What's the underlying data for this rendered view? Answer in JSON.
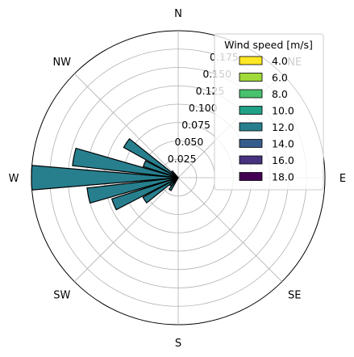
{
  "chart_data": {
    "type": "windrose",
    "direction_labels": [
      "N",
      "NE",
      "E",
      "SE",
      "S",
      "SW",
      "W",
      "NW"
    ],
    "radial_ticks": [
      "0.025",
      "0.050",
      "0.075",
      "0.100",
      "0.125",
      "0.150",
      "0.175"
    ],
    "rmax": 0.2,
    "legend": {
      "title": "Wind speed [m/s]",
      "placement": "top-right",
      "entries": [
        {
          "label": "4.0",
          "color": "#fde725"
        },
        {
          "label": "6.0",
          "color": "#a0da39"
        },
        {
          "label": "8.0",
          "color": "#4ac16d"
        },
        {
          "label": "10.0",
          "color": "#1fa187"
        },
        {
          "label": "12.0",
          "color": "#277f8e"
        },
        {
          "label": "14.0",
          "color": "#365c8d"
        },
        {
          "label": "16.0",
          "color": "#46327e"
        },
        {
          "label": "18.0",
          "color": "#440154"
        }
      ]
    },
    "bar_color": "#277f8e",
    "bar_edge_color": "#000000",
    "bars": [
      {
        "direction_deg": 213.75,
        "value": 0.02
      },
      {
        "direction_deg": 225.0,
        "value": 0.015
      },
      {
        "direction_deg": 236.25,
        "value": 0.055
      },
      {
        "direction_deg": 247.5,
        "value": 0.095
      },
      {
        "direction_deg": 258.75,
        "value": 0.125
      },
      {
        "direction_deg": 270.0,
        "value": 0.2
      },
      {
        "direction_deg": 281.25,
        "value": 0.145
      },
      {
        "direction_deg": 292.5,
        "value": 0.05
      },
      {
        "direction_deg": 303.75,
        "value": 0.085
      },
      {
        "direction_deg": 315.0,
        "value": 0.012
      }
    ]
  }
}
